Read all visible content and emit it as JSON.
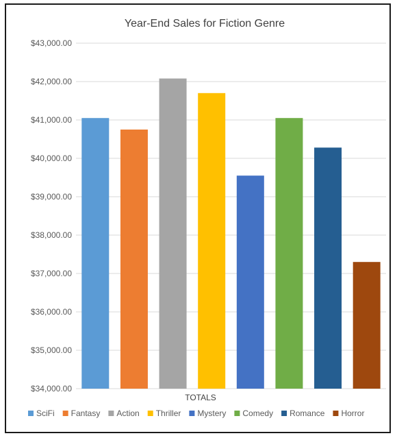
{
  "chart_data": {
    "type": "bar",
    "title": "Year-End Sales for Fiction Genre",
    "xlabel": "TOTALS",
    "ylabel": "",
    "ylim": [
      34000,
      43000
    ],
    "yticks": [
      34000,
      35000,
      36000,
      37000,
      38000,
      39000,
      40000,
      41000,
      42000,
      43000
    ],
    "ytick_labels": [
      "$34,000.00",
      "$35,000.00",
      "$36,000.00",
      "$37,000.00",
      "$38,000.00",
      "$39,000.00",
      "$40,000.00",
      "$41,000.00",
      "$42,000.00",
      "$43,000.00"
    ],
    "grid": true,
    "legend_position": "bottom",
    "categories": [
      "TOTALS"
    ],
    "series": [
      {
        "name": "SciFi",
        "values": [
          41050
        ],
        "color": "#5b9bd5"
      },
      {
        "name": "Fantasy",
        "values": [
          40750
        ],
        "color": "#ed7d31"
      },
      {
        "name": "Action",
        "values": [
          42080
        ],
        "color": "#a5a5a5"
      },
      {
        "name": "Thriller",
        "values": [
          41700
        ],
        "color": "#ffc000"
      },
      {
        "name": "Mystery",
        "values": [
          39550
        ],
        "color": "#4472c4"
      },
      {
        "name": "Comedy",
        "values": [
          41050
        ],
        "color": "#70ad47"
      },
      {
        "name": "Romance",
        "values": [
          40280
        ],
        "color": "#255e91"
      },
      {
        "name": "Horror",
        "values": [
          37300
        ],
        "color": "#9e480e"
      }
    ]
  }
}
